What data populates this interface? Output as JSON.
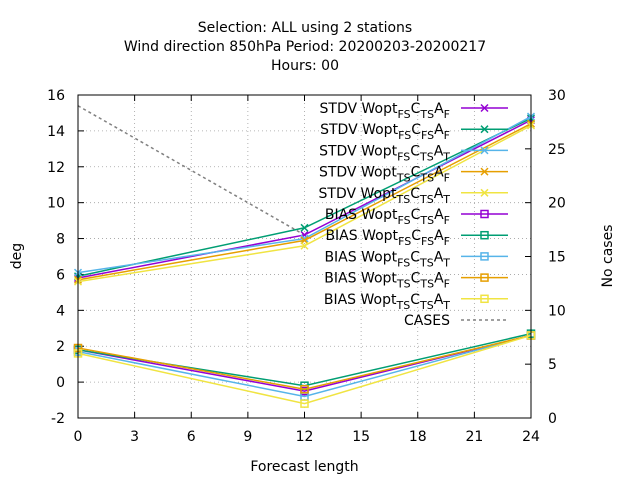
{
  "chart_data": {
    "type": "line",
    "title_lines": [
      "Selection: ALL using     2 stations",
      "Wind direction 850hPa   Period: 20200203-20200217",
      "Hours:  00"
    ],
    "xlabel": "Forecast length",
    "ylabel": "deg",
    "y2label": "No cases",
    "xlim": [
      0,
      24
    ],
    "ylim": [
      -2,
      16
    ],
    "y2lim": [
      0,
      30
    ],
    "xticks": [
      0,
      3,
      6,
      9,
      12,
      15,
      18,
      21,
      24
    ],
    "yticks": [
      -2,
      0,
      2,
      4,
      6,
      8,
      10,
      12,
      14,
      16
    ],
    "y2ticks": [
      0,
      5,
      10,
      15,
      20,
      25,
      30
    ],
    "grid": true,
    "legend_position": "top-right",
    "x": [
      0,
      12,
      24
    ],
    "series": [
      {
        "name": "STDV Wopt FS C TS A F",
        "label": {
          "prefix": "STDV Wopt",
          "s1": "FS",
          "s2": "TS",
          "s3": "F"
        },
        "color": "#9400d3",
        "marker": "x",
        "axis": "y1",
        "values": [
          5.8,
          8.2,
          14.6
        ]
      },
      {
        "name": "STDV Wopt FS C FS A F",
        "label": {
          "prefix": "STDV Wopt",
          "s1": "FS",
          "s2": "FS",
          "s3": "F"
        },
        "color": "#009e73",
        "marker": "x",
        "axis": "y1",
        "values": [
          5.9,
          8.6,
          14.7
        ]
      },
      {
        "name": "STDV Wopt FS C TS A T",
        "label": {
          "prefix": "STDV Wopt",
          "s1": "FS",
          "s2": "TS",
          "s3": "T"
        },
        "color": "#56b4e9",
        "marker": "x",
        "axis": "y1",
        "values": [
          6.1,
          8.0,
          14.8
        ]
      },
      {
        "name": "STDV Wopt TS C TS A F",
        "label": {
          "prefix": "STDV Wopt",
          "s1": "TS",
          "s2": "TS",
          "s3": "F"
        },
        "color": "#e69f00",
        "marker": "x",
        "axis": "y1",
        "values": [
          5.7,
          7.9,
          14.4
        ]
      },
      {
        "name": "STDV Wopt TS C TS A T",
        "label": {
          "prefix": "STDV Wopt",
          "s1": "TS",
          "s2": "TS",
          "s3": "T"
        },
        "color": "#f0e442",
        "marker": "x",
        "axis": "y1",
        "values": [
          5.6,
          7.6,
          14.3
        ]
      },
      {
        "name": "BIAS Wopt FS C TS A F",
        "label": {
          "prefix": "BIAS Wopt",
          "s1": "FS",
          "s2": "TS",
          "s3": "F"
        },
        "color": "#9400d3",
        "marker": "square",
        "axis": "y1",
        "values": [
          1.8,
          -0.5,
          2.6
        ]
      },
      {
        "name": "BIAS Wopt FS C FS A F",
        "label": {
          "prefix": "BIAS Wopt",
          "s1": "FS",
          "s2": "FS",
          "s3": "F"
        },
        "color": "#009e73",
        "marker": "square",
        "axis": "y1",
        "values": [
          1.8,
          -0.2,
          2.7
        ]
      },
      {
        "name": "BIAS Wopt FS C TS A T",
        "label": {
          "prefix": "BIAS Wopt",
          "s1": "FS",
          "s2": "TS",
          "s3": "T"
        },
        "color": "#56b4e9",
        "marker": "square",
        "axis": "y1",
        "values": [
          1.7,
          -0.8,
          2.6
        ]
      },
      {
        "name": "BIAS Wopt TS C TS A F",
        "label": {
          "prefix": "BIAS Wopt",
          "s1": "TS",
          "s2": "TS",
          "s3": "F"
        },
        "color": "#e69f00",
        "marker": "square",
        "axis": "y1",
        "values": [
          1.9,
          -0.4,
          2.6
        ]
      },
      {
        "name": "BIAS Wopt TS C TS A T",
        "label": {
          "prefix": "BIAS Wopt",
          "s1": "TS",
          "s2": "TS",
          "s3": "T"
        },
        "color": "#f0e442",
        "marker": "square",
        "axis": "y1",
        "values": [
          1.6,
          -1.2,
          2.6
        ]
      },
      {
        "name": "CASES",
        "label": {
          "prefix": "CASES"
        },
        "color": "#808080",
        "marker": "none",
        "dashed": true,
        "axis": "y2",
        "values": [
          29,
          17,
          null
        ]
      }
    ]
  }
}
